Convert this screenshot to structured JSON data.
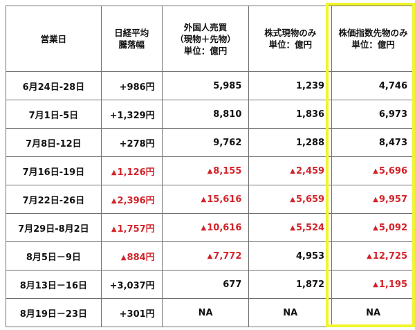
{
  "headers": [
    [
      "営業日"
    ],
    [
      "日経平均",
      "騰落幅"
    ],
    [
      "外国人売買",
      "（現物＋先物）",
      "単位：億円"
    ],
    [
      "株式現物のみ",
      "単位：億円"
    ],
    [
      "株価指数先物のみ",
      "単位：億円"
    ]
  ],
  "rows": [
    {
      "period": "6月24日-28日",
      "nikkei": "+986円",
      "nikkei_neg": false,
      "total": "5,985",
      "total_neg": false,
      "spot": "1,239",
      "spot_neg": false,
      "futures": "4,746",
      "futures_neg": false
    },
    {
      "period": "7月1日-5日",
      "nikkei": "+1,329円",
      "nikkei_neg": false,
      "total": "8,810",
      "total_neg": false,
      "spot": "1,836",
      "spot_neg": false,
      "futures": "6,973",
      "futures_neg": false
    },
    {
      "period": "7月8日-12日",
      "nikkei": "+278円",
      "nikkei_neg": false,
      "total": "9,762",
      "total_neg": false,
      "spot": "1,288",
      "spot_neg": false,
      "futures": "8,473",
      "futures_neg": false
    },
    {
      "period": "7月16日-19日",
      "nikkei": "1,126円",
      "nikkei_neg": true,
      "total": "8,155",
      "total_neg": true,
      "spot": "2,459",
      "spot_neg": true,
      "futures": "5,696",
      "futures_neg": true
    },
    {
      "period": "7月22日-26日",
      "nikkei": "2,396円",
      "nikkei_neg": true,
      "total": "15,616",
      "total_neg": true,
      "spot": "5,659",
      "spot_neg": true,
      "futures": "9,957",
      "futures_neg": true
    },
    {
      "period": "7月29日-8月2日",
      "nikkei": "1,757円",
      "nikkei_neg": true,
      "total": "10,616",
      "total_neg": true,
      "spot": "5,524",
      "spot_neg": true,
      "futures": "5,092",
      "futures_neg": true
    },
    {
      "period": "8月5日－9日",
      "nikkei": "884円",
      "nikkei_neg": true,
      "total": "7,772",
      "total_neg": true,
      "spot": "4,953",
      "spot_neg": false,
      "futures": "12,725",
      "futures_neg": true
    },
    {
      "period": "8月13日－16日",
      "nikkei": "+3,037円",
      "nikkei_neg": false,
      "total": "677",
      "total_neg": false,
      "spot": "1,872",
      "spot_neg": false,
      "futures": "1,195",
      "futures_neg": true
    },
    {
      "period": "8月19日－23日",
      "nikkei": "+301円",
      "nikkei_neg": false,
      "total": "NA",
      "total_neg": false,
      "spot": "NA",
      "spot_neg": false,
      "futures": "NA",
      "futures_neg": false
    }
  ],
  "negative_marker": "▲",
  "colors": {
    "negative": "#d2232a",
    "highlight": "#f1f52a",
    "grid": "#6f6f6f"
  }
}
